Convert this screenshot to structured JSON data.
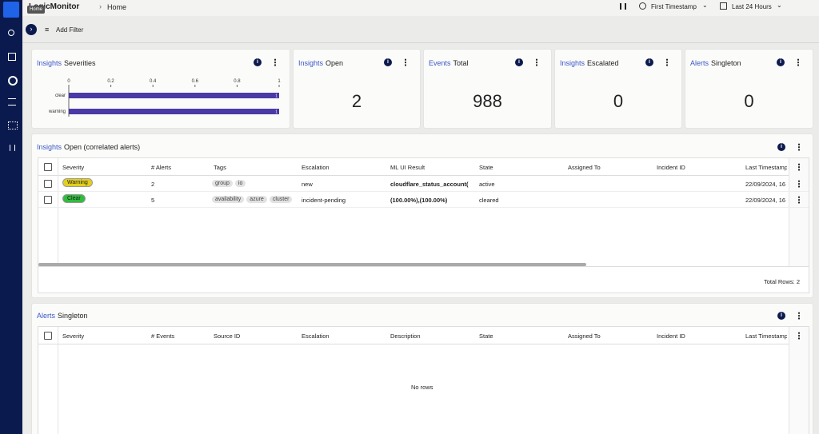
{
  "sidebar": {
    "tooltip": "Home"
  },
  "header": {
    "brand": "LogicMonitor",
    "breadcrumb": "Home",
    "timestamp_mode": "First Timestamp",
    "time_range": "Last 24 Hours"
  },
  "filter": {
    "add_filter": "Add Filter"
  },
  "widgets": [
    {
      "prefix": "Insights",
      "title": "Severities",
      "chart_data": {
        "type": "bar",
        "orientation": "horizontal",
        "categories": [
          "clear",
          "warning"
        ],
        "values": [
          1,
          1
        ],
        "color": "#4a3aa6",
        "xlim": [
          0,
          1
        ],
        "xticks": [
          0,
          0.2,
          0.4,
          0.6,
          0.8,
          1
        ]
      }
    },
    {
      "prefix": "Insights",
      "title": "Open",
      "value": 2
    },
    {
      "prefix": "Events",
      "title": "Total",
      "value": 988
    },
    {
      "prefix": "Insights",
      "title": "Escalated",
      "value": 0
    },
    {
      "prefix": "Alerts",
      "title": "Singleton",
      "value": 0
    }
  ],
  "open_table": {
    "prefix": "Insights",
    "title": "Open (correlated alerts)",
    "columns": [
      "Severity",
      "# Alerts",
      "Tags",
      "Escalation",
      "ML UI Result",
      "State",
      "Assigned To",
      "Incident ID",
      "Last Timestamp"
    ],
    "rows": [
      {
        "severity": "Warning",
        "severity_color": "#e3cf1c",
        "count": 2,
        "tags": [
          "group",
          "io"
        ],
        "escalation": "new",
        "ml_result": "cloudflare_status_account(",
        "state": "active",
        "last_timestamp": "22/09/2024, 16"
      },
      {
        "severity": "Clear",
        "severity_color": "#2fbd3c",
        "count": 5,
        "tags": [
          "availability",
          "azure",
          "cluster"
        ],
        "escalation": "incident-pending",
        "ml_result": "(100.00%),(100.00%)",
        "state": "cleared",
        "last_timestamp": "22/09/2024, 16"
      }
    ],
    "footer": "Total Rows: 2"
  },
  "singleton_table": {
    "prefix": "Alerts",
    "title": "Singleton",
    "columns": [
      "Severity",
      "# Events",
      "Source ID",
      "Escalation",
      "Description",
      "State",
      "Assigned To",
      "Incident ID",
      "Last Timestamp"
    ],
    "empty": "No rows"
  }
}
